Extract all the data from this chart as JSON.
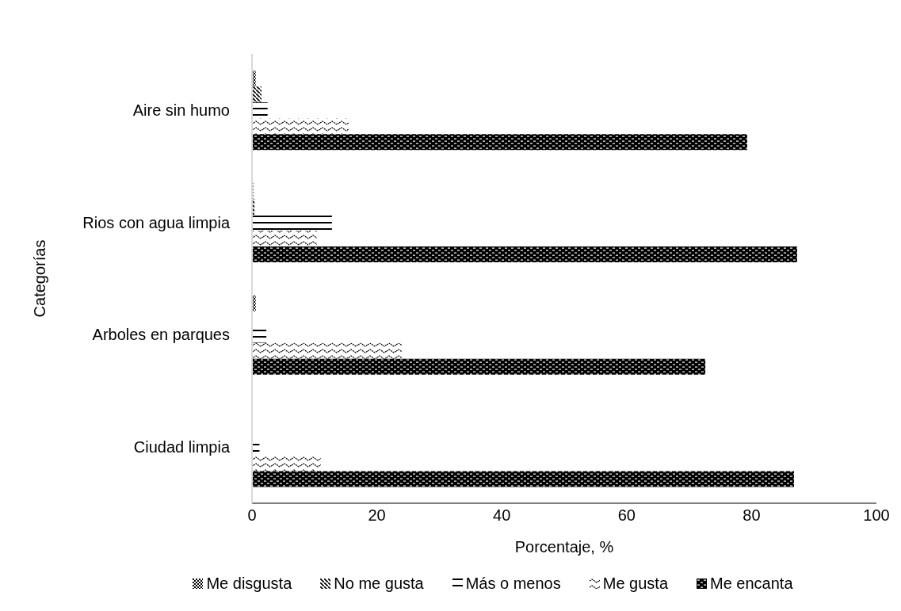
{
  "chart_data": {
    "type": "bar",
    "orientation": "horizontal",
    "xlabel": "Porcentaje, %",
    "ylabel": "Categorías",
    "categories": [
      "Aire sin humo",
      "Rios con agua limpia",
      "Arboles en parques",
      "Ciudad limpia"
    ],
    "series": [
      {
        "name": "Me disgusta",
        "color": "#000000",
        "values": [
          0.6,
          0.2,
          0.6,
          0
        ]
      },
      {
        "name": "No me gusta",
        "color": "#000000",
        "values": [
          1.5,
          0.4,
          0.1,
          0
        ]
      },
      {
        "name": "Más o menos",
        "color": "#000000",
        "values": [
          2.5,
          12.8,
          2.3,
          1.2
        ]
      },
      {
        "name": "Me gusta",
        "color": "#000000",
        "values": [
          15.5,
          10.4,
          24,
          11
        ]
      },
      {
        "name": "Me encanta",
        "color": "#000000",
        "values": [
          79.3,
          87.3,
          72.6,
          86.8
        ]
      }
    ],
    "xlim": [
      0,
      100
    ],
    "xticks": [
      0,
      20,
      40,
      60,
      80,
      100
    ],
    "grid": false,
    "legend": "bottom"
  }
}
